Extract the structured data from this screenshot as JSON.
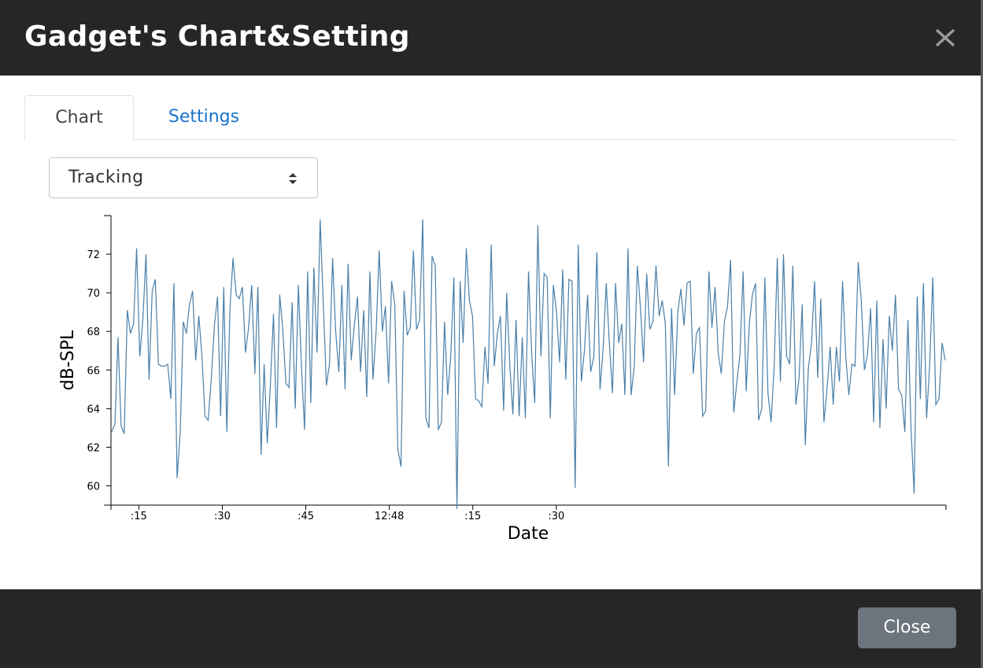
{
  "modal": {
    "title": "Gadget's Chart&Setting",
    "close_icon": "close-icon",
    "close_button_label": "Close"
  },
  "tabs": [
    {
      "label": "Chart",
      "active": true
    },
    {
      "label": "Settings",
      "active": false
    }
  ],
  "mode_select": {
    "value": "Tracking",
    "icon": "sort-arrows-icon"
  },
  "colors": {
    "header_bg": "#262626",
    "line": "#4a7fa8",
    "link": "#1a73c9",
    "button_bg": "#6c757d"
  },
  "chart_data": {
    "type": "line",
    "xlabel": "Date",
    "ylabel": "dB-SPL",
    "ylim": [
      59,
      74
    ],
    "yticks": [
      60,
      62,
      64,
      66,
      68,
      70,
      72
    ],
    "xlim": [
      "12:47:10",
      "12:49:40"
    ],
    "xticks": [
      {
        "x": "12:47:15",
        "label": ":15"
      },
      {
        "x": "12:47:30",
        "label": ":30"
      },
      {
        "x": "12:47:45",
        "label": ":45"
      },
      {
        "x": "12:48:00",
        "label": "12:48"
      },
      {
        "x": "12:48:15",
        "label": ":15"
      },
      {
        "x": "12:48:30",
        "label": ":30"
      }
    ],
    "grid": false,
    "series": [
      {
        "values": [
          62.8,
          63.2,
          67.7,
          63.1,
          62.7,
          69.1,
          67.9,
          68.4,
          72.3,
          66.7,
          68.6,
          72.0,
          65.5,
          70.1,
          70.7,
          66.3,
          66.2,
          66.2,
          66.3,
          64.5,
          70.5,
          60.4,
          62.7,
          68.5,
          67.9,
          69.4,
          70.1,
          66.5,
          68.8,
          66.7,
          63.6,
          63.4,
          65.5,
          68.3,
          69.8,
          63.6,
          70.3,
          62.8,
          69.2,
          71.8,
          69.9,
          69.7,
          70.3,
          66.9,
          68.2,
          70.4,
          65.8,
          70.3,
          61.6,
          66.3,
          62.2,
          65.2,
          68.9,
          63.0,
          69.9,
          68.1,
          65.3,
          65.1,
          69.5,
          64.0,
          70.4,
          66.2,
          62.9,
          71.1,
          64.3,
          71.3,
          66.9,
          73.8,
          69.5,
          65.2,
          66.3,
          71.8,
          68.0,
          65.9,
          70.4,
          65.0,
          71.5,
          66.5,
          68.3,
          69.8,
          65.9,
          69.1,
          64.6,
          71.1,
          65.5,
          68.0,
          72.2,
          68.0,
          69.3,
          65.3,
          70.6,
          69.4,
          61.9,
          61.0,
          70.1,
          67.8,
          68.2,
          72.2,
          68.1,
          68.6,
          73.8,
          63.5,
          63.0,
          71.9,
          71.4,
          62.9,
          63.3,
          68.5,
          64.7,
          66.7,
          70.8,
          58.8,
          70.6,
          67.4,
          72.3,
          69.6,
          68.8,
          64.5,
          64.4,
          64.1,
          67.2,
          65.3,
          72.5,
          66.2,
          67.9,
          68.8,
          63.9,
          70.0,
          66.2,
          63.7,
          68.6,
          63.6,
          67.7,
          63.5,
          71.1,
          66.9,
          64.3,
          73.5,
          66.7,
          71.0,
          70.8,
          63.5,
          70.4,
          69.0,
          66.4,
          71.2,
          65.5,
          70.7,
          70.6,
          59.9,
          72.5,
          65.4,
          67.0,
          69.9,
          65.9,
          66.7,
          72.1,
          65.0,
          67.1,
          70.5,
          67.4,
          64.8,
          70.5,
          67.4,
          68.4,
          64.7,
          72.3,
          64.7,
          66.2,
          71.4,
          69.2,
          66.4,
          71.0,
          68.1,
          68.5,
          71.4,
          68.8,
          69.6,
          68.4,
          61.0,
          69.2,
          64.7,
          69.0,
          70.2,
          68.3,
          70.5,
          70.6,
          65.8,
          67.9,
          68.2,
          63.6,
          63.9,
          71.1,
          68.2,
          70.3,
          66.9,
          65.8,
          68.5,
          69.3,
          71.7,
          63.8,
          65.4,
          66.8,
          71.1,
          64.9,
          68.4,
          69.9,
          70.5,
          63.4,
          64.0,
          70.8,
          64.8,
          63.3,
          66.2,
          71.8,
          65.4,
          72.0,
          66.7,
          66.3,
          71.4,
          64.2,
          65.6,
          69.4,
          62.1,
          66.1,
          67.4,
          70.6,
          65.6,
          69.7,
          63.3,
          65.0,
          67.2,
          64.2,
          67.2,
          65.4,
          70.6,
          66.7,
          64.7,
          66.3,
          66.2,
          71.6,
          69.6,
          66.0,
          66.8,
          69.2,
          63.3,
          69.6,
          63.0,
          67.6,
          64.0,
          68.8,
          67.0,
          69.9,
          65.0,
          64.7,
          62.8,
          68.6,
          63.0,
          59.6,
          69.8,
          64.5,
          70.5,
          63.5,
          66.2,
          70.8,
          64.2,
          64.5,
          67.4,
          66.5
        ]
      }
    ]
  }
}
